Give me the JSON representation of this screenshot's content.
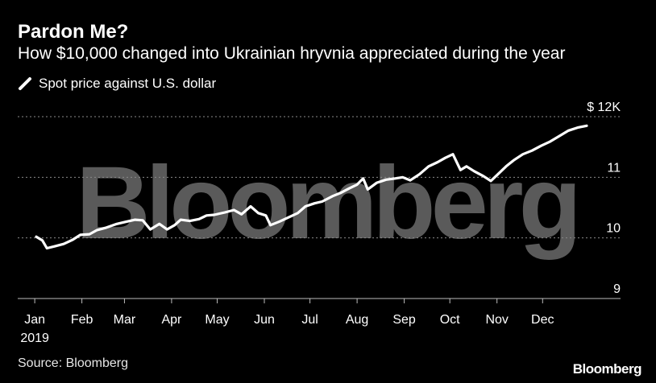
{
  "header": {
    "title": "Pardon Me?",
    "subtitle": "How $10,000 changed into Ukrainian hryvnia appreciated during the year"
  },
  "watermark": "Bloomberg",
  "footer": {
    "source": "Source: Bloomberg",
    "brand": "Bloomberg"
  },
  "colors": {
    "background": "#000000",
    "line": "#ffffff",
    "grid": "#8a8a8a",
    "watermark": "#5a5a5a"
  },
  "chart_data": {
    "type": "line",
    "title": "Pardon Me?",
    "subtitle": "How $10,000 changed into Ukrainian hryvnia appreciated during the year",
    "legend": [
      "Spot price against U.S. dollar"
    ],
    "legend_position": "top-left",
    "xlabel": "",
    "ylabel": "",
    "x_ticks": [
      "Jan",
      "Feb",
      "Mar",
      "Apr",
      "May",
      "Jun",
      "Jul",
      "Aug",
      "Sep",
      "Oct",
      "Nov",
      "Dec"
    ],
    "x_year_label": "2019",
    "y_ticks": [
      {
        "value": 9,
        "label": "9"
      },
      {
        "value": 10,
        "label": "10"
      },
      {
        "value": 11,
        "label": "11"
      },
      {
        "value": 12,
        "label": "$ 12K"
      }
    ],
    "ylim": [
      9,
      12
    ],
    "grid": "horizontal dotted",
    "series": [
      {
        "name": "Spot price against U.S. dollar",
        "x": [
          "2019-01-02",
          "2019-01-06",
          "2019-01-09",
          "2019-01-14",
          "2019-01-20",
          "2019-01-26",
          "2019-01-31",
          "2019-02-06",
          "2019-02-11",
          "2019-02-17",
          "2019-02-24",
          "2019-03-01",
          "2019-03-08",
          "2019-03-13",
          "2019-03-18",
          "2019-03-24",
          "2019-03-29",
          "2019-04-03",
          "2019-04-07",
          "2019-04-13",
          "2019-04-19",
          "2019-04-24",
          "2019-04-29",
          "2019-05-06",
          "2019-05-12",
          "2019-05-17",
          "2019-05-23",
          "2019-05-28",
          "2019-06-02",
          "2019-06-05",
          "2019-06-11",
          "2019-06-17",
          "2019-06-23",
          "2019-06-28",
          "2019-07-04",
          "2019-07-09",
          "2019-07-16",
          "2019-07-21",
          "2019-07-27",
          "2019-08-01",
          "2019-08-05",
          "2019-08-08",
          "2019-08-14",
          "2019-08-20",
          "2019-08-26",
          "2019-08-31",
          "2019-09-05",
          "2019-09-11",
          "2019-09-17",
          "2019-09-23",
          "2019-09-28",
          "2019-10-03",
          "2019-10-08",
          "2019-10-12",
          "2019-10-17",
          "2019-10-23",
          "2019-10-28",
          "2019-11-02",
          "2019-11-07",
          "2019-11-12",
          "2019-11-18",
          "2019-11-24",
          "2019-11-30",
          "2019-12-06",
          "2019-12-12",
          "2019-12-18",
          "2019-12-24",
          "2019-12-30"
        ],
        "values": [
          10.02,
          9.96,
          9.83,
          9.86,
          9.9,
          9.97,
          10.05,
          10.06,
          10.13,
          10.17,
          10.23,
          10.26,
          10.3,
          10.29,
          10.14,
          10.23,
          10.14,
          10.21,
          10.3,
          10.28,
          10.31,
          10.37,
          10.38,
          10.42,
          10.46,
          10.39,
          10.52,
          10.41,
          10.37,
          10.21,
          10.27,
          10.34,
          10.41,
          10.52,
          10.57,
          10.6,
          10.69,
          10.74,
          10.82,
          10.88,
          10.98,
          10.8,
          10.91,
          10.96,
          10.98,
          11.0,
          10.95,
          11.05,
          11.18,
          11.25,
          11.32,
          11.38,
          11.12,
          11.18,
          11.1,
          11.02,
          10.94,
          11.06,
          11.18,
          11.28,
          11.38,
          11.44,
          11.52,
          11.59,
          11.68,
          11.77,
          11.82,
          11.85
        ]
      }
    ]
  }
}
